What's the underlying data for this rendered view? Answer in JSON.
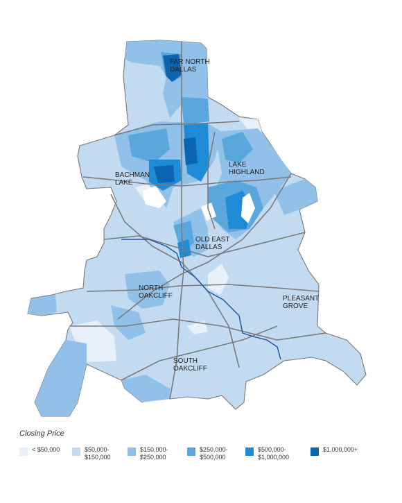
{
  "map": {
    "area_labels": [
      {
        "id": "far-north-dallas",
        "lines": [
          "FAR NORTH",
          "DALLAS"
        ]
      },
      {
        "id": "bachman-lake",
        "lines": [
          "BACHMAN",
          "LAKE"
        ]
      },
      {
        "id": "lake-highland",
        "lines": [
          "LAKE",
          "HIGHLAND"
        ]
      },
      {
        "id": "old-east-dallas",
        "lines": [
          "OLD EAST",
          "DALLAS"
        ]
      },
      {
        "id": "north-oakcliff",
        "lines": [
          "NORTH",
          "OAKCLIFF"
        ]
      },
      {
        "id": "pleasant-grove",
        "lines": [
          "PLEASANT",
          "GROVE"
        ]
      },
      {
        "id": "south-oakcliff",
        "lines": [
          "SOUTH",
          "OAKCLIFF"
        ]
      }
    ]
  },
  "legend": {
    "title": "Closing Price",
    "items": [
      {
        "label": "< $50,000",
        "color": "#e8f1fa"
      },
      {
        "label": "$50,000-\n$150,000",
        "color": "#c3dbf1"
      },
      {
        "label": "$150,000-\n$250,000",
        "color": "#91c1e8"
      },
      {
        "label": "$250,000-\n$500,000",
        "color": "#5aa7de"
      },
      {
        "label": "$500,000-\n$1,000,000",
        "color": "#1f8ad6"
      },
      {
        "label": "$1,000,000+",
        "color": "#0a64b0"
      }
    ]
  }
}
